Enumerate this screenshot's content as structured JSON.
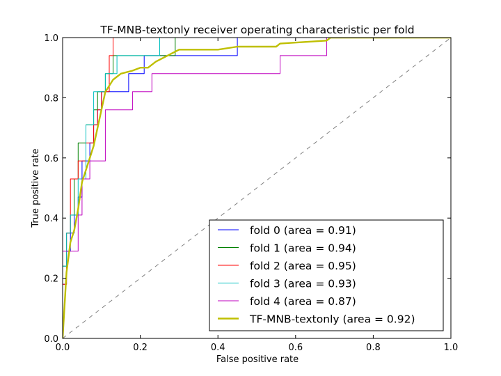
{
  "chart_data": {
    "type": "line",
    "title": "TF-MNB-textonly receiver operating characteristic per fold",
    "xlabel": "False positive rate",
    "ylabel": "True positive rate",
    "xlim": [
      0.0,
      1.0
    ],
    "ylim": [
      0.0,
      1.0
    ],
    "x_ticks": [
      "0.0",
      "0.2",
      "0.4",
      "0.6",
      "0.8",
      "1.0"
    ],
    "y_ticks": [
      "0.0",
      "0.2",
      "0.4",
      "0.6",
      "0.8",
      "1.0"
    ],
    "grid": false,
    "legend_position": "bottom-right",
    "diagonal": {
      "color": "#808080",
      "dash": true,
      "points": [
        [
          0,
          0
        ],
        [
          1,
          1
        ]
      ]
    },
    "series": [
      {
        "name": "fold 0 (area = 0.91)",
        "color": "#0000ff",
        "step": true,
        "points": [
          [
            0,
            0
          ],
          [
            0,
            0.18
          ],
          [
            0.01,
            0.18
          ],
          [
            0.01,
            0.29
          ],
          [
            0.02,
            0.29
          ],
          [
            0.02,
            0.35
          ],
          [
            0.03,
            0.35
          ],
          [
            0.03,
            0.41
          ],
          [
            0.04,
            0.41
          ],
          [
            0.04,
            0.47
          ],
          [
            0.05,
            0.47
          ],
          [
            0.05,
            0.59
          ],
          [
            0.07,
            0.59
          ],
          [
            0.07,
            0.65
          ],
          [
            0.08,
            0.65
          ],
          [
            0.08,
            0.71
          ],
          [
            0.09,
            0.71
          ],
          [
            0.09,
            0.76
          ],
          [
            0.1,
            0.76
          ],
          [
            0.1,
            0.82
          ],
          [
            0.17,
            0.82
          ],
          [
            0.17,
            0.88
          ],
          [
            0.21,
            0.88
          ],
          [
            0.21,
            0.94
          ],
          [
            0.45,
            0.94
          ],
          [
            0.45,
            1.0
          ],
          [
            1.0,
            1.0
          ]
        ]
      },
      {
        "name": "fold 1 (area = 0.94)",
        "color": "#008000",
        "step": true,
        "points": [
          [
            0,
            0
          ],
          [
            0,
            0.24
          ],
          [
            0.01,
            0.24
          ],
          [
            0.01,
            0.35
          ],
          [
            0.02,
            0.35
          ],
          [
            0.02,
            0.41
          ],
          [
            0.03,
            0.41
          ],
          [
            0.03,
            0.53
          ],
          [
            0.04,
            0.53
          ],
          [
            0.04,
            0.65
          ],
          [
            0.06,
            0.65
          ],
          [
            0.06,
            0.71
          ],
          [
            0.08,
            0.71
          ],
          [
            0.08,
            0.76
          ],
          [
            0.09,
            0.76
          ],
          [
            0.09,
            0.82
          ],
          [
            0.11,
            0.82
          ],
          [
            0.11,
            0.88
          ],
          [
            0.13,
            0.88
          ],
          [
            0.13,
            0.94
          ],
          [
            0.29,
            0.94
          ],
          [
            0.29,
            1.0
          ],
          [
            1.0,
            1.0
          ]
        ]
      },
      {
        "name": "fold 2 (area = 0.95)",
        "color": "#ff0000",
        "step": true,
        "points": [
          [
            0,
            0
          ],
          [
            0,
            0.18
          ],
          [
            0.01,
            0.18
          ],
          [
            0.01,
            0.35
          ],
          [
            0.02,
            0.35
          ],
          [
            0.02,
            0.53
          ],
          [
            0.04,
            0.53
          ],
          [
            0.04,
            0.59
          ],
          [
            0.06,
            0.59
          ],
          [
            0.06,
            0.65
          ],
          [
            0.08,
            0.65
          ],
          [
            0.08,
            0.71
          ],
          [
            0.09,
            0.71
          ],
          [
            0.09,
            0.76
          ],
          [
            0.1,
            0.76
          ],
          [
            0.1,
            0.82
          ],
          [
            0.12,
            0.82
          ],
          [
            0.12,
            0.94
          ],
          [
            0.13,
            0.94
          ],
          [
            0.13,
            1.0
          ],
          [
            1.0,
            1.0
          ]
        ]
      },
      {
        "name": "fold 3 (area = 0.93)",
        "color": "#00bfbf",
        "step": true,
        "points": [
          [
            0,
            0
          ],
          [
            0,
            0.24
          ],
          [
            0.01,
            0.24
          ],
          [
            0.01,
            0.35
          ],
          [
            0.02,
            0.35
          ],
          [
            0.02,
            0.41
          ],
          [
            0.04,
            0.41
          ],
          [
            0.04,
            0.53
          ],
          [
            0.06,
            0.53
          ],
          [
            0.06,
            0.71
          ],
          [
            0.08,
            0.71
          ],
          [
            0.08,
            0.82
          ],
          [
            0.11,
            0.82
          ],
          [
            0.11,
            0.88
          ],
          [
            0.14,
            0.88
          ],
          [
            0.14,
            0.94
          ],
          [
            0.25,
            0.94
          ],
          [
            0.25,
            1.0
          ],
          [
            1.0,
            1.0
          ]
        ]
      },
      {
        "name": "fold 4 (area = 0.87)",
        "color": "#bf00bf",
        "step": true,
        "points": [
          [
            0,
            0
          ],
          [
            0,
            0.29
          ],
          [
            0.04,
            0.29
          ],
          [
            0.04,
            0.41
          ],
          [
            0.05,
            0.41
          ],
          [
            0.05,
            0.53
          ],
          [
            0.07,
            0.53
          ],
          [
            0.07,
            0.59
          ],
          [
            0.11,
            0.59
          ],
          [
            0.11,
            0.76
          ],
          [
            0.18,
            0.76
          ],
          [
            0.18,
            0.82
          ],
          [
            0.23,
            0.82
          ],
          [
            0.23,
            0.88
          ],
          [
            0.56,
            0.88
          ],
          [
            0.56,
            0.94
          ],
          [
            0.68,
            0.94
          ],
          [
            0.68,
            1.0
          ],
          [
            1.0,
            1.0
          ]
        ]
      },
      {
        "name": "TF-MNB-textonly (area = 0.92)",
        "color": "#bfbf00",
        "step": false,
        "points": [
          [
            0,
            0
          ],
          [
            0.01,
            0.22
          ],
          [
            0.02,
            0.32
          ],
          [
            0.03,
            0.36
          ],
          [
            0.04,
            0.43
          ],
          [
            0.05,
            0.52
          ],
          [
            0.06,
            0.56
          ],
          [
            0.07,
            0.6
          ],
          [
            0.08,
            0.64
          ],
          [
            0.09,
            0.7
          ],
          [
            0.1,
            0.76
          ],
          [
            0.11,
            0.82
          ],
          [
            0.12,
            0.84
          ],
          [
            0.13,
            0.86
          ],
          [
            0.15,
            0.88
          ],
          [
            0.18,
            0.89
          ],
          [
            0.2,
            0.9
          ],
          [
            0.22,
            0.9
          ],
          [
            0.24,
            0.92
          ],
          [
            0.27,
            0.94
          ],
          [
            0.3,
            0.96
          ],
          [
            0.4,
            0.96
          ],
          [
            0.45,
            0.97
          ],
          [
            0.55,
            0.97
          ],
          [
            0.56,
            0.98
          ],
          [
            0.68,
            0.99
          ],
          [
            0.69,
            1.0
          ],
          [
            1.0,
            1.0
          ]
        ]
      }
    ]
  }
}
